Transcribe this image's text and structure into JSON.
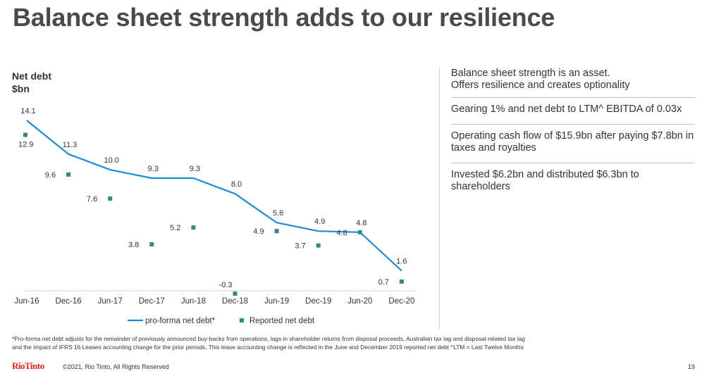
{
  "page": {
    "title": "Balance sheet strength adds to our resilience",
    "page_number": "19",
    "copyright": "©2021, Rio Tinto, All Rights Reserved",
    "logo_text": "RioTinto",
    "footnote_line1": "*Pro-forma net debt adjusts for the remainder of previously announced buy-backs from operations, lags in shareholder returns from disposal proceeds, Australian tax lag and disposal-related tax lag",
    "footnote_line2": "and the impact of IFRS 16 Leases accounting change for the prior periods. This lease accounting change is reflected in the June and December 2019 reported net debt  ^LTM = Last Twelve Months"
  },
  "side": {
    "items": [
      "Balance sheet strength is an asset.",
      "Offers resilience and creates optionality",
      "Gearing 1% and net debt to LTM^ EBITDA of 0.03x",
      "Operating cash flow of $15.9bn after paying $7.8bn in taxes and royalties",
      "Invested $6.2bn and distributed $6.3bn to shareholders"
    ]
  },
  "chart_data": {
    "type": "line",
    "title": "Net debt",
    "ylabel": "$bn",
    "categories": [
      "Jun-16",
      "Dec-16",
      "Jun-17",
      "Dec-17",
      "Jun-18",
      "Dec-18",
      "Jun-19",
      "Dec-19",
      "Jun-20",
      "Dec-20"
    ],
    "series": [
      {
        "name": "pro-forma net debt*",
        "style": "line",
        "color": "#1f8ad8",
        "values": [
          14.1,
          11.3,
          10.0,
          9.3,
          9.3,
          8.0,
          5.6,
          4.9,
          4.8,
          1.6
        ]
      },
      {
        "name": "Reported net debt",
        "style": "marker",
        "color": "#2e8b85",
        "values": [
          12.9,
          9.6,
          7.6,
          3.8,
          5.2,
          -0.3,
          4.9,
          3.7,
          4.8,
          0.7
        ]
      }
    ],
    "ylim": [
      -0.3,
      14.1
    ],
    "grid": false,
    "legend": "bottom",
    "data_labels": true
  }
}
